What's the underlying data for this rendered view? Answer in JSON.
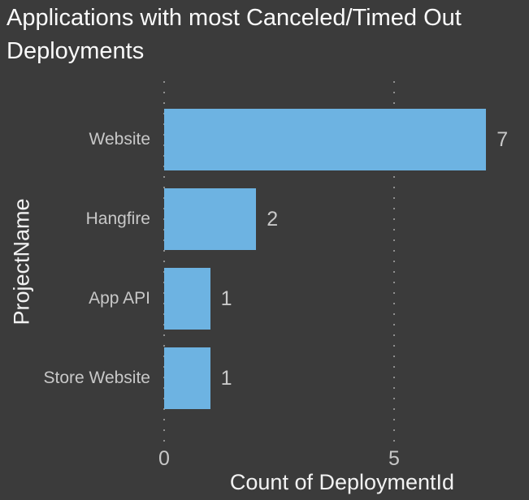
{
  "title": "Applications with most Canceled/Timed Out Deployments",
  "colors": {
    "background": "#3b3b3b",
    "bar": "#6db3e2",
    "title_text": "#fafafa",
    "axis_title_text": "#f2f2f2",
    "label_text": "#c8c8c8",
    "gridline": "#8f8f8f"
  },
  "chart_data": {
    "type": "bar",
    "orientation": "horizontal",
    "title": "Applications with most Canceled/Timed Out Deployments",
    "categories": [
      "Website",
      "Hangfire",
      "App API",
      "Store Website"
    ],
    "values": [
      7,
      2,
      1,
      1
    ],
    "data_labels": [
      "7",
      "2",
      "1",
      "1"
    ],
    "xlabel": "Count of DeploymentId",
    "ylabel": "ProjectName",
    "xlim": [
      0,
      7.75
    ],
    "xticks": [
      0,
      5
    ],
    "xtick_labels": [
      "0",
      "5"
    ],
    "grid": "dotted-vertical",
    "legend": "none"
  }
}
